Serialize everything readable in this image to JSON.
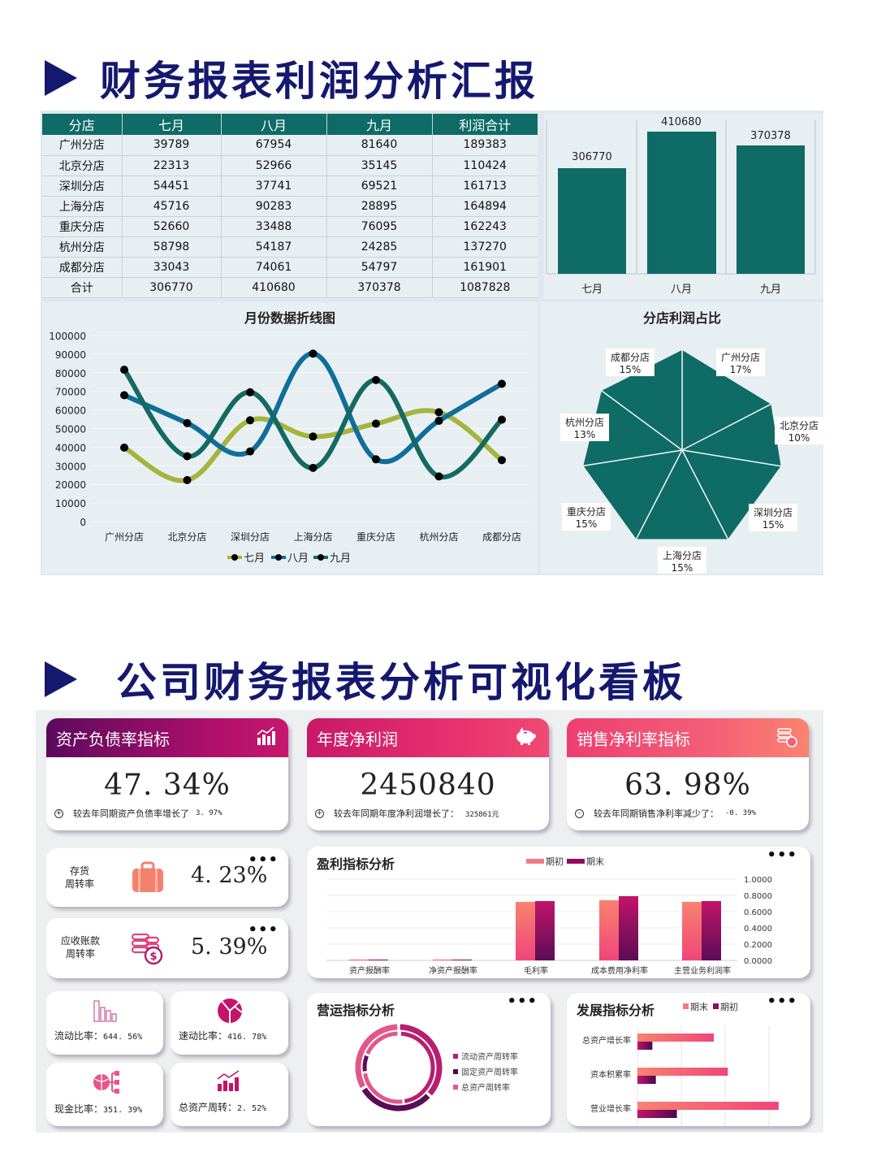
{
  "section1": {
    "title": "财务报表利润分析汇报"
  },
  "section2": {
    "title": "公司财务报表分析可视化看板"
  },
  "table": {
    "headers": [
      "分店",
      "七月",
      "八月",
      "九月",
      "利润合计"
    ],
    "rows": [
      [
        "广州分店",
        "39789",
        "67954",
        "81640",
        "189383"
      ],
      [
        "北京分店",
        "22313",
        "52966",
        "35145",
        "110424"
      ],
      [
        "深圳分店",
        "54451",
        "37741",
        "69521",
        "161713"
      ],
      [
        "上海分店",
        "45716",
        "90283",
        "28895",
        "164894"
      ],
      [
        "重庆分店",
        "52660",
        "33488",
        "76095",
        "162243"
      ],
      [
        "杭州分店",
        "58798",
        "54187",
        "24285",
        "137270"
      ],
      [
        "成都分店",
        "33043",
        "74061",
        "54797",
        "161901"
      ],
      [
        "合计",
        "306770",
        "410680",
        "370378",
        "1087828"
      ]
    ]
  },
  "colors": {
    "teal": "#0e6b66",
    "line_jul": "#a5b43c",
    "line_aug": "#0f6e9a",
    "line_sep": "#146a62",
    "navy": "#14186e",
    "pink_light": "#f47a86",
    "magenta": "#b2135f",
    "plum": "#5a0d55"
  },
  "chart_data": [
    {
      "type": "bar",
      "title": "",
      "categories": [
        "七月",
        "八月",
        "九月"
      ],
      "values": [
        306770,
        410680,
        370378
      ],
      "labels": [
        "306770",
        "410680",
        "370378"
      ],
      "ylim": [
        0,
        450000
      ]
    },
    {
      "type": "line",
      "title": "月份数据折线图",
      "categories": [
        "广州分店",
        "北京分店",
        "深圳分店",
        "上海分店",
        "重庆分店",
        "杭州分店",
        "成都分店"
      ],
      "series": [
        {
          "name": "七月",
          "values": [
            39789,
            22313,
            54451,
            45716,
            52660,
            58798,
            33043
          ]
        },
        {
          "name": "八月",
          "values": [
            67954,
            52966,
            37741,
            90283,
            33488,
            54187,
            74061
          ]
        },
        {
          "name": "九月",
          "values": [
            81640,
            35145,
            69521,
            28895,
            76095,
            24285,
            54797
          ]
        }
      ],
      "yticks": [
        "100000",
        "90000",
        "80000",
        "70000",
        "60000",
        "50000",
        "40000",
        "30000",
        "20000",
        "10000",
        "0"
      ],
      "ylim": [
        0,
        100000
      ],
      "legend": [
        "七月",
        "八月",
        "九月"
      ],
      "legend_position": "bottom",
      "grid": true
    },
    {
      "type": "pie",
      "title": "分店利润占比",
      "categories": [
        "广州分店",
        "北京分店",
        "深圳分店",
        "上海分店",
        "重庆分店",
        "杭州分店",
        "成都分店"
      ],
      "values": [
        189383,
        110424,
        161713,
        164894,
        162243,
        137270,
        161901
      ],
      "labels": [
        "17%",
        "10%",
        "15%",
        "15%",
        "15%",
        "13%",
        "15%"
      ]
    },
    {
      "type": "bar",
      "title": "盈利指标分析",
      "categories": [
        "资产报酬率",
        "净资产报酬率",
        "毛利率",
        "成本费用净利率",
        "主营业务利润率"
      ],
      "series": [
        {
          "name": "期初",
          "values": [
            0.01,
            0.0,
            0.72,
            0.74,
            0.72
          ]
        },
        {
          "name": "期末",
          "values": [
            0.01,
            0.0,
            0.73,
            0.79,
            0.73
          ]
        }
      ],
      "yticks": [
        "1.0000",
        "0.8000",
        "0.6000",
        "0.4000",
        "0.2000",
        "0.0000"
      ],
      "ylim": [
        0,
        1
      ],
      "legend": [
        "期初",
        "期末"
      ],
      "legend_position": "top"
    },
    {
      "type": "pie",
      "title": "营运指标分析",
      "categories": [
        "流动资产周转率",
        "固定资产周转率",
        "总资产周转率"
      ],
      "values": [
        38,
        30,
        32
      ],
      "legend": [
        "流动资产周转率",
        "固定资产周转率",
        "总资产周转率"
      ]
    },
    {
      "type": "bar",
      "title": "发展指标分析",
      "orientation": "horizontal",
      "categories": [
        "总资产增长率",
        "资本积累率",
        "营业增长率"
      ],
      "series": [
        {
          "name": "期末",
          "values": [
            0.87,
            1.03,
            1.61
          ]
        },
        {
          "name": "期初",
          "values": [
            0.17,
            0.21,
            0.45
          ]
        }
      ],
      "legend": [
        "期末",
        "期初"
      ],
      "legend_position": "top"
    }
  ],
  "bar_chart": {
    "labels": [
      "306770",
      "410680",
      "370378"
    ],
    "categories": [
      "七月",
      "八月",
      "九月"
    ]
  },
  "line_chart": {
    "title": "月份数据折线图",
    "yticks": [
      "100000",
      "90000",
      "80000",
      "70000",
      "60000",
      "50000",
      "40000",
      "30000",
      "20000",
      "10000",
      "0"
    ],
    "categories": [
      "广州分店",
      "北京分店",
      "深圳分店",
      "上海分店",
      "重庆分店",
      "杭州分店",
      "成都分店"
    ],
    "legend": [
      "七月",
      "八月",
      "九月"
    ]
  },
  "pie_chart": {
    "title": "分店利润占比",
    "labels": [
      {
        "name": "广州分店",
        "pct": "17%"
      },
      {
        "name": "北京分店",
        "pct": "10%"
      },
      {
        "name": "深圳分店",
        "pct": "15%"
      },
      {
        "name": "上海分店",
        "pct": "15%"
      },
      {
        "name": "重庆分店",
        "pct": "15%"
      },
      {
        "name": "杭州分店",
        "pct": "13%"
      },
      {
        "name": "成都分店",
        "pct": "15%"
      }
    ]
  },
  "kpis": [
    {
      "title": "资产负债率指标",
      "value": "47. 34%",
      "note": "较去年同期资产负债率增长了",
      "delta": "3. 97%",
      "sign": "+",
      "icon": "bar-chart-icon"
    },
    {
      "title": "年度净利润",
      "value": "2450840",
      "note": "较去年同期年度净利润增长了：",
      "delta": "325861元",
      "sign": "+",
      "icon": "piggy-bank-icon"
    },
    {
      "title": "销售净利率指标",
      "value": "63. 98%",
      "note": "较去年同期销售净利率减少了：",
      "delta": "-0. 39%",
      "sign": "-",
      "icon": "coins-icon"
    }
  ],
  "turnover": [
    {
      "label_line1": "存货",
      "label_line2": "周转率",
      "value": "4. 23%",
      "icon": "suitcase-icon"
    },
    {
      "label_line1": "应收账款",
      "label_line2": "周转率",
      "value": "5. 39%",
      "icon": "coins-dollar-icon"
    }
  ],
  "ratios": [
    {
      "label": "流动比率：",
      "value": "644. 56%",
      "icon": "bars-outline-icon"
    },
    {
      "label": "速动比率：",
      "value": "416. 78%",
      "icon": "pie-icon"
    },
    {
      "label": "现金比率：",
      "value": "351. 39%",
      "icon": "network-icon"
    },
    {
      "label": "总资产周转：",
      "value": "2. 52%",
      "icon": "trend-bars-icon"
    }
  ],
  "profit_panel": {
    "title": "盈利指标分析",
    "legend": [
      "期初",
      "期末"
    ],
    "yticks": [
      "1.0000",
      "0.8000",
      "0.6000",
      "0.4000",
      "0.2000",
      "0.0000"
    ],
    "categories": [
      "资产报酬率",
      "净资产报酬率",
      "毛利率",
      "成本费用净利率",
      "主营业务利润率"
    ],
    "more": "•••"
  },
  "ops_panel": {
    "title": "营运指标分析",
    "legend": [
      "流动资产周转率",
      "固定资产周转率",
      "总资产周转率"
    ],
    "more": "•••"
  },
  "growth_panel": {
    "title": "发展指标分析",
    "legend": [
      "期末",
      "期初"
    ],
    "categories": [
      "总资产增长率",
      "资本积累率",
      "营业增长率"
    ],
    "more": "•••"
  },
  "more_label": "•••"
}
